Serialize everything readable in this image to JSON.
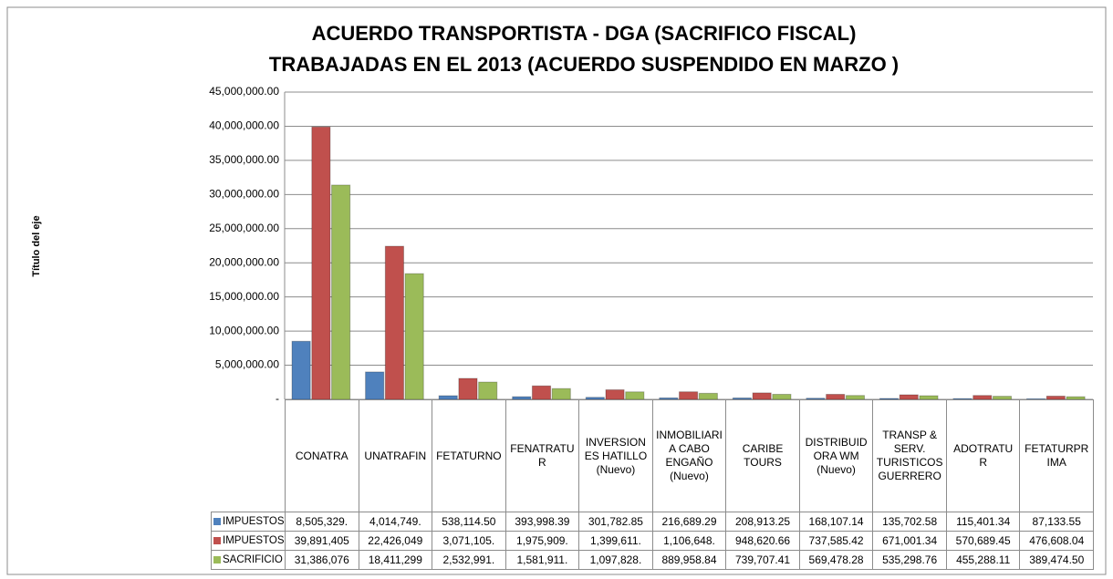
{
  "chart_data": {
    "type": "bar",
    "title": [
      "ACUERDO TRANSPORTISTA - DGA (SACRIFICO FISCAL)",
      "TRABAJADAS EN EL 2013 (ACUERDO SUSPENDIDO EN MARZO )"
    ],
    "y_label": "Título del eje",
    "categories": [
      "CONATRA",
      "UNATRAFIN",
      "FETATURNO",
      "FENATRATUR",
      "INVERSIONES HATILLO (Nuevo)",
      "INMOBILIARIA CABO ENGAÑO (Nuevo)",
      "CARIBE TOURS",
      "DISTRIBUIDORA WM (Nuevo)",
      "TRANSP & SERV. TURISTICOS GUERRERO",
      "ADOTRATUR",
      "FETATURPRIMA"
    ],
    "series": [
      {
        "name": "IMPUESTOS COBRADOS (TRATAMIENTO)",
        "color": "#4f81bd",
        "values": [
          8505329,
          4014749,
          538114.5,
          393998.39,
          301782.85,
          216689.29,
          208913.25,
          168107.14,
          135702.58,
          115401.34,
          87133.55
        ],
        "value_labels": [
          "8,505,329.",
          "4,014,749.",
          "538,114.50",
          "393,998.39",
          "301,782.85",
          "216,689.29",
          "208,913.25",
          "168,107.14",
          "135,702.58",
          "115,401.34",
          "87,133.55"
        ]
      },
      {
        "name": "IMPUESTOS NORMALES",
        "color": "#c0504d",
        "values": [
          39891405,
          22426049,
          3071105,
          1975909,
          1399611,
          1106648,
          948620.66,
          737585.42,
          671001.34,
          570689.45,
          476608.04
        ],
        "value_labels": [
          "39,891,405",
          "22,426,049",
          "3,071,105.",
          "1,975,909.",
          "1,399,611.",
          "1,106,648.",
          "948,620.66",
          "737,585.42",
          "671,001.34",
          "570,689.45",
          "476,608.04"
        ]
      },
      {
        "name": "SACRIFICIO FISCAL",
        "color": "#9bbb59",
        "values": [
          31386076,
          18411299,
          2532991,
          1581911,
          1097828,
          889958.84,
          739707.41,
          569478.28,
          535298.76,
          455288.11,
          389474.5
        ],
        "value_labels": [
          "31,386,076",
          "18,411,299",
          "2,532,991.",
          "1,581,911.",
          "1,097,828.",
          "889,958.84",
          "739,707.41",
          "569,478.28",
          "535,298.76",
          "455,288.11",
          "389,474.50"
        ]
      }
    ],
    "ylim": [
      0,
      45000000
    ],
    "yticks": [
      {
        "value": 0,
        "label": "-"
      },
      {
        "value": 5000000,
        "label": "5,000,000.00"
      },
      {
        "value": 10000000,
        "label": "10,000,000.00"
      },
      {
        "value": 15000000,
        "label": "15,000,000.00"
      },
      {
        "value": 20000000,
        "label": "20,000,000.00"
      },
      {
        "value": 25000000,
        "label": "25,000,000.00"
      },
      {
        "value": 30000000,
        "label": "30,000,000.00"
      },
      {
        "value": 35000000,
        "label": "35,000,000.00"
      },
      {
        "value": 40000000,
        "label": "40,000,000.00"
      },
      {
        "value": 45000000,
        "label": "45,000,000.00"
      }
    ],
    "grid": true
  }
}
